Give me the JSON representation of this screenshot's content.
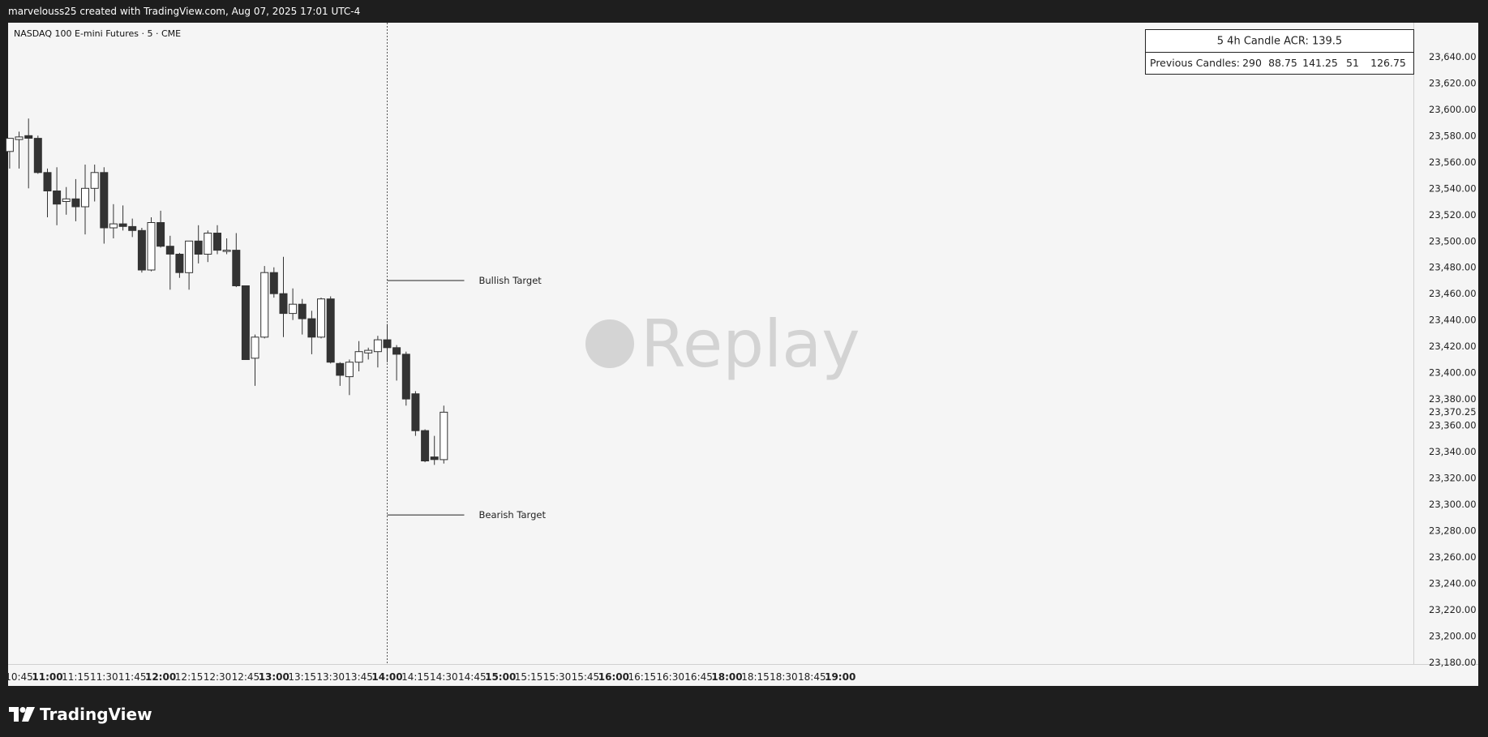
{
  "header": {
    "caption": "marvelouss25 created with TradingView.com, Aug 07, 2025 17:01 UTC-4"
  },
  "footer": {
    "brand": "TradingView",
    "logo_icon": "tradingview-logo-icon"
  },
  "colors": {
    "page_bg": "#1e1e1e",
    "chart_bg": "#f5f5f5",
    "bear_candle": "#333333",
    "bull_candle": "#ffffff",
    "candle_outline": "#333333",
    "replay_watermark": "#c8c8c8"
  },
  "chart_data": {
    "type": "candlestick",
    "title": "NASDAQ 100 E-mini Futures · 5 · CME",
    "ylim": [
      23180,
      23655
    ],
    "y_ticks": [
      "23,640.00",
      "23,620.00",
      "23,600.00",
      "23,580.00",
      "23,560.00",
      "23,540.00",
      "23,520.00",
      "23,500.00",
      "23,480.00",
      "23,460.00",
      "23,440.00",
      "23,420.00",
      "23,400.00",
      "23,380.00",
      "23,360.00",
      "23,340.00",
      "23,320.00",
      "23,300.00",
      "23,280.00",
      "23,260.00",
      "23,240.00",
      "23,220.00",
      "23,200.00",
      "23,180.00"
    ],
    "y_tick_values": [
      23640,
      23620,
      23600,
      23580,
      23560,
      23540,
      23520,
      23500,
      23480,
      23460,
      23440,
      23420,
      23400,
      23380,
      23360,
      23340,
      23320,
      23300,
      23280,
      23260,
      23240,
      23220,
      23200,
      23180
    ],
    "current_price": {
      "label": "23,370.25",
      "value": 23370.25
    },
    "x_ticks": [
      {
        "label": "10:45",
        "bold": false
      },
      {
        "label": "11:00",
        "bold": true
      },
      {
        "label": "11:15",
        "bold": false
      },
      {
        "label": "11:30",
        "bold": false
      },
      {
        "label": "11:45",
        "bold": false
      },
      {
        "label": "12:00",
        "bold": true
      },
      {
        "label": "12:15",
        "bold": false
      },
      {
        "label": "12:30",
        "bold": false
      },
      {
        "label": "12:45",
        "bold": false
      },
      {
        "label": "13:00",
        "bold": true
      },
      {
        "label": "13:15",
        "bold": false
      },
      {
        "label": "13:30",
        "bold": false
      },
      {
        "label": "13:45",
        "bold": false
      },
      {
        "label": "14:00",
        "bold": true
      },
      {
        "label": "14:15",
        "bold": false
      },
      {
        "label": "14:30",
        "bold": false
      },
      {
        "label": "14:45",
        "bold": false
      },
      {
        "label": "15:00",
        "bold": true
      },
      {
        "label": "15:15",
        "bold": false
      },
      {
        "label": "15:30",
        "bold": false
      },
      {
        "label": "15:45",
        "bold": false
      },
      {
        "label": "16:00",
        "bold": true
      },
      {
        "label": "16:15",
        "bold": false
      },
      {
        "label": "16:30",
        "bold": false
      },
      {
        "label": "16:45",
        "bold": false
      },
      {
        "label": "18:00",
        "bold": true
      },
      {
        "label": "18:15",
        "bold": false
      },
      {
        "label": "18:30",
        "bold": false
      },
      {
        "label": "18:45",
        "bold": false
      },
      {
        "label": "19:00",
        "bold": true
      }
    ],
    "x_start_time": "10:40",
    "interval_minutes": 5,
    "candles": [
      {
        "o": 23568,
        "h": 23578,
        "l": 23555,
        "c": 23578
      },
      {
        "o": 23577,
        "h": 23583,
        "l": 23555,
        "c": 23579
      },
      {
        "o": 23580,
        "h": 23593,
        "l": 23540,
        "c": 23578
      },
      {
        "o": 23578,
        "h": 23580,
        "l": 23551,
        "c": 23552
      },
      {
        "o": 23552,
        "h": 23555,
        "l": 23518,
        "c": 23538
      },
      {
        "o": 23538,
        "h": 23556,
        "l": 23512,
        "c": 23528
      },
      {
        "o": 23530,
        "h": 23541,
        "l": 23520,
        "c": 23532
      },
      {
        "o": 23532,
        "h": 23547,
        "l": 23515,
        "c": 23526
      },
      {
        "o": 23526,
        "h": 23558,
        "l": 23505,
        "c": 23540
      },
      {
        "o": 23540,
        "h": 23558,
        "l": 23530,
        "c": 23552
      },
      {
        "o": 23552,
        "h": 23556,
        "l": 23498,
        "c": 23510
      },
      {
        "o": 23510,
        "h": 23528,
        "l": 23502,
        "c": 23513
      },
      {
        "o": 23513,
        "h": 23527,
        "l": 23508,
        "c": 23511
      },
      {
        "o": 23511,
        "h": 23517,
        "l": 23503,
        "c": 23508
      },
      {
        "o": 23508,
        "h": 23510,
        "l": 23476,
        "c": 23478
      },
      {
        "o": 23478,
        "h": 23518,
        "l": 23477,
        "c": 23514
      },
      {
        "o": 23514,
        "h": 23523,
        "l": 23495,
        "c": 23496
      },
      {
        "o": 23496,
        "h": 23504,
        "l": 23463,
        "c": 23490
      },
      {
        "o": 23490,
        "h": 23491,
        "l": 23472,
        "c": 23476
      },
      {
        "o": 23476,
        "h": 23500,
        "l": 23463,
        "c": 23500
      },
      {
        "o": 23500,
        "h": 23512,
        "l": 23483,
        "c": 23490
      },
      {
        "o": 23490,
        "h": 23508,
        "l": 23484,
        "c": 23506
      },
      {
        "o": 23506,
        "h": 23512,
        "l": 23490,
        "c": 23493
      },
      {
        "o": 23493,
        "h": 23502,
        "l": 23490,
        "c": 23493
      },
      {
        "o": 23493,
        "h": 23506,
        "l": 23465,
        "c": 23466
      },
      {
        "o": 23466,
        "h": 23466,
        "l": 23410,
        "c": 23410
      },
      {
        "o": 23411,
        "h": 23429,
        "l": 23390,
        "c": 23427
      },
      {
        "o": 23427,
        "h": 23481,
        "l": 23426,
        "c": 23476
      },
      {
        "o": 23476,
        "h": 23480,
        "l": 23457,
        "c": 23460
      },
      {
        "o": 23460,
        "h": 23488,
        "l": 23427,
        "c": 23445
      },
      {
        "o": 23445,
        "h": 23464,
        "l": 23440,
        "c": 23452
      },
      {
        "o": 23452,
        "h": 23456,
        "l": 23429,
        "c": 23441
      },
      {
        "o": 23441,
        "h": 23447,
        "l": 23414,
        "c": 23427
      },
      {
        "o": 23427,
        "h": 23457,
        "l": 23426,
        "c": 23456
      },
      {
        "o": 23456,
        "h": 23458,
        "l": 23407,
        "c": 23408
      },
      {
        "o": 23407,
        "h": 23408,
        "l": 23390,
        "c": 23398
      },
      {
        "o": 23397,
        "h": 23410,
        "l": 23383,
        "c": 23408
      },
      {
        "o": 23408,
        "h": 23424,
        "l": 23401,
        "c": 23416
      },
      {
        "o": 23415,
        "h": 23419,
        "l": 23410,
        "c": 23417
      },
      {
        "o": 23416,
        "h": 23428,
        "l": 23404,
        "c": 23425
      },
      {
        "o": 23425,
        "h": 23437,
        "l": 23408,
        "c": 23419
      },
      {
        "o": 23419,
        "h": 23421,
        "l": 23394,
        "c": 23414
      },
      {
        "o": 23414,
        "h": 23416,
        "l": 23375,
        "c": 23380
      },
      {
        "o": 23384,
        "h": 23386,
        "l": 23352,
        "c": 23356
      },
      {
        "o": 23356,
        "h": 23357,
        "l": 23332,
        "c": 23333
      },
      {
        "o": 23336,
        "h": 23352,
        "l": 23330,
        "c": 23334
      },
      {
        "o": 23334,
        "h": 23375,
        "l": 23331,
        "c": 23370
      }
    ],
    "replay_marker_time": "14:00",
    "lines": [
      {
        "label": "Bullish Target",
        "value": 23470
      },
      {
        "label": "Bearish Target",
        "value": 23292
      }
    ],
    "info_table": {
      "title": "5 4h Candle ACR: 139.5",
      "label": "Previous Candles:",
      "values": [
        "290",
        "88.75",
        "141.25",
        "51",
        "126.75"
      ]
    },
    "watermark": "Replay",
    "grid": false
  }
}
